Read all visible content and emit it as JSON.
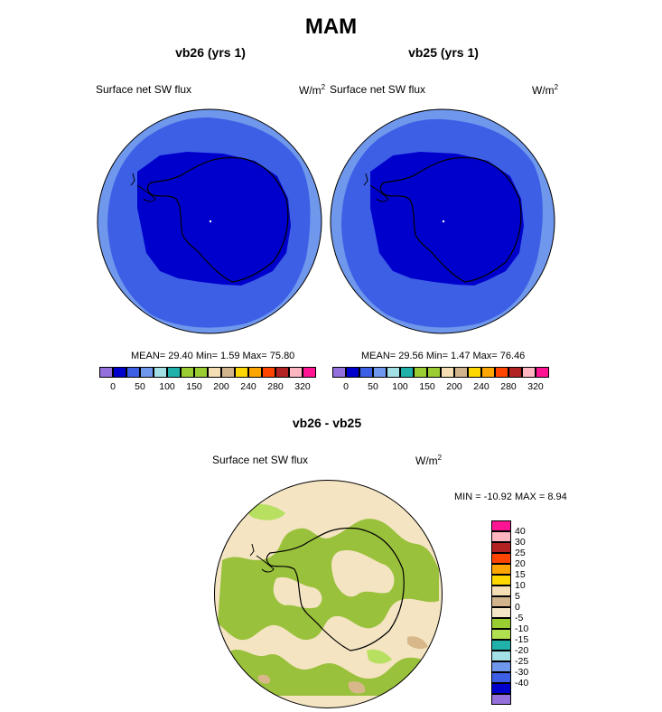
{
  "page": {
    "title": "MAM"
  },
  "panels": [
    {
      "title": "vb26 (yrs 1)",
      "left_label": "Surface net SW flux",
      "right_label": "W/m",
      "units_sup": "2",
      "stats": "MEAN=  29.40  Min=   1.59  Max=  75.80"
    },
    {
      "title": "vb25 (yrs 1)",
      "left_label": "Surface net SW flux",
      "right_label": "W/m",
      "units_sup": "2",
      "stats": "MEAN=  29.56  Min=   1.47  Max=  76.46"
    }
  ],
  "diff": {
    "title": "vb26 - vb25",
    "left_label": "Surface net SW flux",
    "right_label": "W/m",
    "units_sup": "2",
    "minmax": "MIN = -10.92 MAX =   8.94"
  },
  "colors": {
    "land_fill": "#0000cd",
    "ring_inner": "#3d5fe6",
    "ring_outer": "#6f97ec",
    "coast": "#000000",
    "diff_base": "#f4e4c2",
    "diff_green": "#9ac13c",
    "diff_light_green": "#b8e060",
    "diff_tan": "#d8b88a"
  },
  "chart_data": [
    {
      "type": "heatmap",
      "title": "vb26 (yrs 1)",
      "variable": "Surface net SW flux",
      "units": "W/m2",
      "stats": {
        "mean": 29.4,
        "min": 1.59,
        "max": 75.8
      },
      "colorbar": {
        "colors": [
          "#9370db",
          "#0000cd",
          "#3d5fe6",
          "#6f97ec",
          "#a3e0e6",
          "#20b2aa",
          "#9acd32",
          "#9acd32",
          "#f5deb3",
          "#d2b48c",
          "#ffd700",
          "#ffa500",
          "#ff4500",
          "#b22222",
          "#ffb6c1",
          "#ff1493"
        ],
        "tick_labels": [
          "0",
          "50",
          "100",
          "150",
          "200",
          "240",
          "280",
          "320"
        ]
      }
    },
    {
      "type": "heatmap",
      "title": "vb25 (yrs 1)",
      "variable": "Surface net SW flux",
      "units": "W/m2",
      "stats": {
        "mean": 29.56,
        "min": 1.47,
        "max": 76.46
      },
      "colorbar": {
        "colors": [
          "#9370db",
          "#0000cd",
          "#3d5fe6",
          "#6f97ec",
          "#a3e0e6",
          "#20b2aa",
          "#9acd32",
          "#9acd32",
          "#f5deb3",
          "#d2b48c",
          "#ffd700",
          "#ffa500",
          "#ff4500",
          "#b22222",
          "#ffb6c1",
          "#ff1493"
        ],
        "tick_labels": [
          "0",
          "50",
          "100",
          "150",
          "200",
          "240",
          "280",
          "320"
        ]
      }
    },
    {
      "type": "heatmap",
      "title": "vb26 - vb25",
      "variable": "Surface net SW flux",
      "units": "W/m2",
      "stats": {
        "min": -10.92,
        "max": 8.94
      },
      "colorbar": {
        "colors_top_to_bottom": [
          "#ff1493",
          "#ffb6c1",
          "#b22222",
          "#ff4500",
          "#ffa500",
          "#ffd700",
          "#f5deb3",
          "#d2b48c",
          "#f5e6c8",
          "#9acd32",
          "#b0e050",
          "#20b2aa",
          "#a3e0e6",
          "#6f97ec",
          "#3d5fe6",
          "#0000cd",
          "#9370db"
        ],
        "tick_labels": [
          "40",
          "30",
          "25",
          "20",
          "15",
          "10",
          "5",
          "0",
          "-5",
          "-10",
          "-15",
          "-20",
          "-25",
          "-30",
          "-40"
        ]
      }
    }
  ]
}
